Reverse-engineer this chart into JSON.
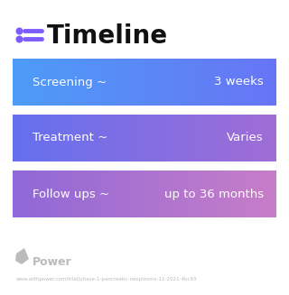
{
  "title": "Timeline",
  "title_fontsize": 20,
  "title_fontweight": "bold",
  "title_color": "#111111",
  "icon_color": "#7c5cfc",
  "background_color": "#ffffff",
  "rows": [
    {
      "label": "Screening ~",
      "value": "3 weeks",
      "color_left": "#4d9cf8",
      "color_right": "#6875f5"
    },
    {
      "label": "Treatment ~",
      "value": "Varies",
      "color_left": "#6570ef",
      "color_right": "#a06dd6"
    },
    {
      "label": "Follow ups ~",
      "value": "up to 36 months",
      "color_left": "#9068d8",
      "color_right": "#c87ec8"
    }
  ],
  "watermark_text": "Power",
  "watermark_color": "#bbbbbb",
  "url_text": "www.withpower.com/trial/phase-1-pancreatic-neoplasms-11-2021-4bc93",
  "url_color": "#bbbbbb",
  "text_color": "#ffffff",
  "label_fontsize": 9.5,
  "value_fontsize": 9.5
}
